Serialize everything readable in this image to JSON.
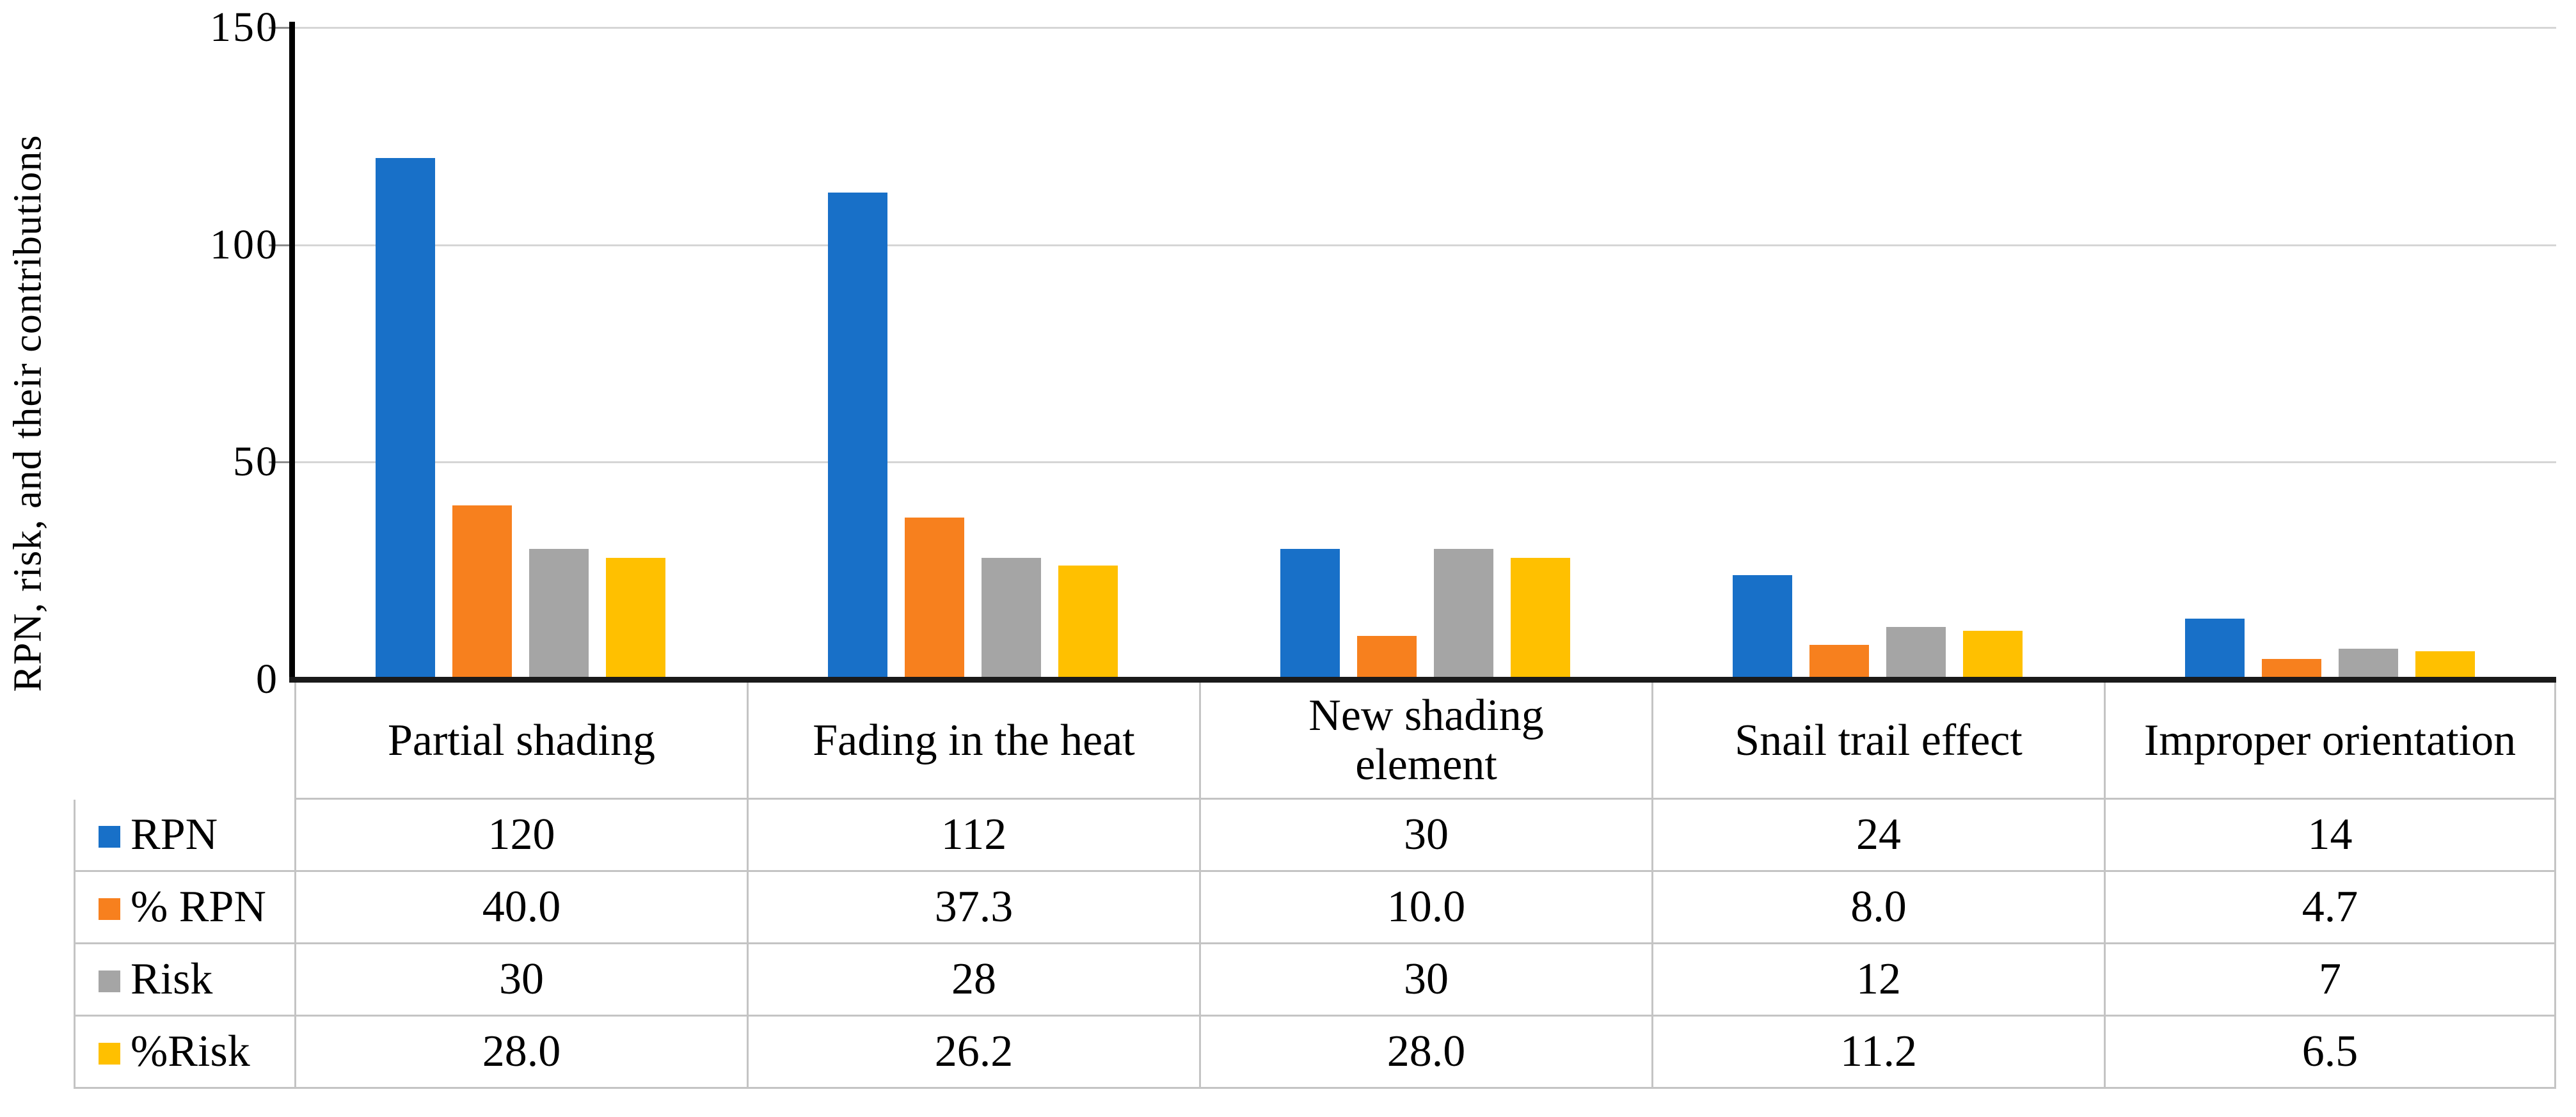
{
  "chart_data": {
    "type": "bar",
    "title": "",
    "ylabel": "RPN, risk, and their contributions",
    "xlabel": "",
    "ylim": [
      0,
      150
    ],
    "yticks": [
      0,
      50,
      100,
      150
    ],
    "grid": "horizontal",
    "gridline_color": "#d6d6d6",
    "axis_color": "#000000",
    "legend_position": "table-left-column",
    "data_table_attached": true,
    "categories": [
      "Partial shading",
      "Fading in the heat",
      "New shading\nelement",
      "Snail trail effect",
      "Improper orientation"
    ],
    "series": [
      {
        "name": "RPN",
        "color": "#1870c8",
        "values": [
          120,
          112,
          30,
          24,
          14
        ],
        "display": [
          "120",
          "112",
          "30",
          "24",
          "14"
        ]
      },
      {
        "name": "% RPN",
        "color": "#f7801e",
        "values": [
          40.0,
          37.3,
          10.0,
          8.0,
          4.7
        ],
        "display": [
          "40.0",
          "37.3",
          "10.0",
          "8.0",
          "4.7"
        ]
      },
      {
        "name": "Risk",
        "color": "#a5a5a5",
        "values": [
          30,
          28,
          30,
          12,
          7
        ],
        "display": [
          "30",
          "28",
          "30",
          "12",
          "7"
        ]
      },
      {
        "name": "%Risk",
        "color": "#ffc000",
        "values": [
          28.0,
          26.2,
          28.0,
          11.2,
          6.5
        ],
        "display": [
          "28.0",
          "26.2",
          "28.0",
          "11.2",
          "6.5"
        ]
      }
    ]
  },
  "table_border_color": "#c4c4c4",
  "background": "#ffffff"
}
